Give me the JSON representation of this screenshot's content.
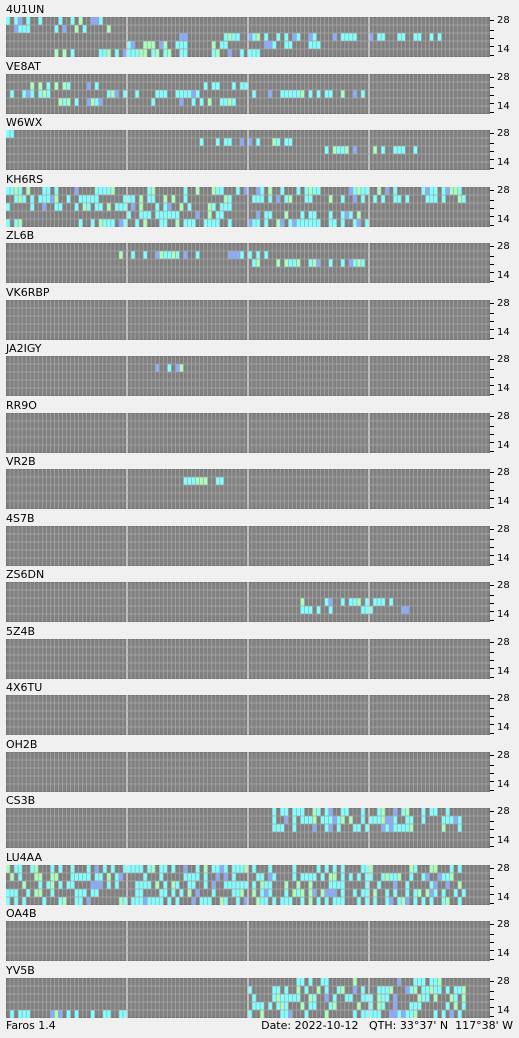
{
  "stations": [
    {
      "name": "4U1UN",
      "heard": {
        "4": [
          0,
          1,
          2,
          3,
          4
        ],
        "3": [
          0,
          2,
          3,
          4
        ],
        "2": [
          7,
          9,
          10,
          11,
          12,
          13,
          14,
          15,
          16,
          17
        ],
        "1": [
          4,
          5,
          6,
          7,
          8,
          9,
          10,
          11,
          12
        ],
        "0": [
          2,
          3,
          4,
          5,
          6,
          7,
          8,
          9,
          10
        ]
      }
    },
    {
      "name": "VE8AT",
      "heard": {
        "3": [
          1,
          2,
          3,
          8,
          9
        ],
        "2": [
          0,
          1,
          4,
          5,
          6,
          7,
          10,
          11,
          12,
          13,
          14
        ],
        "1": [
          2,
          3,
          6,
          7,
          8,
          9
        ],
        "0": []
      }
    },
    {
      "name": "W6WX",
      "heard": {
        "4": [
          0
        ],
        "3": [
          8,
          9,
          10,
          11
        ],
        "2": [
          13,
          14,
          15,
          16
        ],
        "1": [],
        "0": []
      }
    },
    {
      "name": "KH6RS",
      "heard": {
        "4": [
          0,
          1,
          2,
          3,
          4,
          5,
          6,
          7,
          8,
          9,
          10,
          11,
          12,
          13,
          14,
          15,
          16,
          17,
          18
        ],
        "3": [
          0,
          1,
          2,
          3,
          4,
          5,
          6,
          7,
          8,
          9,
          10,
          11,
          12,
          13,
          14,
          15,
          16,
          17,
          18
        ],
        "2": [
          0,
          1,
          2,
          3,
          4,
          5,
          6,
          7,
          8,
          9,
          10
        ],
        "1": [
          5,
          6,
          7,
          8,
          9,
          10,
          11,
          12,
          13,
          14
        ],
        "0": [
          0,
          3,
          4,
          5,
          6,
          7,
          8,
          9,
          10,
          11,
          12,
          13,
          14
        ]
      }
    },
    {
      "name": "ZL6B",
      "heard": {
        "4": [],
        "3": [
          4,
          5,
          6,
          7,
          8,
          9,
          10
        ],
        "2": [
          10,
          11,
          12,
          13,
          14
        ],
        "1": [],
        "0": []
      }
    },
    {
      "name": "VK6RBP",
      "heard": {
        "4": [],
        "3": [],
        "2": [],
        "1": [],
        "0": []
      }
    },
    {
      "name": "JA2IGY",
      "heard": {
        "4": [],
        "3": [
          6,
          7
        ],
        "2": [],
        "1": [],
        "0": []
      }
    },
    {
      "name": "RR9O",
      "heard": {
        "4": [],
        "3": [],
        "2": [],
        "1": [],
        "0": []
      }
    },
    {
      "name": "VR2B",
      "heard": {
        "4": [],
        "3": [
          7,
          8
        ],
        "2": [],
        "1": [],
        "0": []
      }
    },
    {
      "name": "4S7B",
      "heard": {
        "4": [],
        "3": [],
        "2": [],
        "1": [],
        "0": []
      }
    },
    {
      "name": "ZS6DN",
      "heard": {
        "4": [],
        "3": [],
        "2": [
          12,
          13,
          14,
          15
        ],
        "1": [
          12,
          13,
          14,
          15,
          16
        ],
        "0": []
      }
    },
    {
      "name": "5Z4B",
      "heard": {
        "4": [],
        "3": [],
        "2": [],
        "1": [],
        "0": []
      }
    },
    {
      "name": "4X6TU",
      "heard": {
        "4": [],
        "3": [],
        "2": [],
        "1": [],
        "0": []
      }
    },
    {
      "name": "OH2B",
      "heard": {
        "4": [],
        "3": [],
        "2": [],
        "1": [],
        "0": []
      }
    },
    {
      "name": "CS3B",
      "heard": {
        "4": [
          11,
          12,
          13,
          14,
          15,
          16,
          17,
          18
        ],
        "3": [
          11,
          12,
          13,
          14,
          15,
          16,
          17,
          18
        ],
        "2": [
          11,
          12,
          13,
          14,
          15,
          16,
          17,
          18
        ],
        "1": [],
        "0": []
      }
    },
    {
      "name": "LU4AA",
      "heard": {
        "4": [
          0,
          1,
          2,
          3,
          4,
          5,
          6,
          7,
          8,
          9,
          10,
          11,
          12,
          13,
          14,
          15,
          16,
          17,
          18
        ],
        "3": [
          0,
          1,
          2,
          3,
          4,
          5,
          6,
          7,
          8,
          9,
          10,
          11,
          12,
          13,
          14,
          15,
          16,
          17,
          18
        ],
        "2": [
          0,
          1,
          2,
          3,
          4,
          5,
          6,
          7,
          8,
          9,
          10,
          11,
          12,
          13,
          14,
          15,
          16,
          17,
          18
        ],
        "1": [
          0,
          1,
          2,
          3,
          4,
          5,
          6,
          7,
          8,
          9,
          10,
          11,
          12,
          13,
          14,
          15,
          16,
          17,
          18
        ],
        "0": [
          0,
          1,
          2,
          3,
          4,
          5,
          6,
          7,
          8,
          9,
          10,
          11,
          12,
          13,
          14,
          15,
          16,
          17,
          18
        ]
      }
    },
    {
      "name": "OA4B",
      "heard": {
        "4": [],
        "3": [],
        "2": [],
        "1": [],
        "0": []
      }
    },
    {
      "name": "YV5B",
      "heard": {
        "4": [
          12,
          13,
          14,
          15,
          16,
          17
        ],
        "3": [
          10,
          11,
          12,
          13,
          14,
          15,
          16,
          17,
          18
        ],
        "2": [
          10,
          11,
          12,
          13,
          14,
          15,
          16,
          17,
          18
        ],
        "1": [
          10,
          11,
          12,
          13,
          14,
          15,
          16,
          17,
          18
        ],
        "0": [
          0,
          1,
          2,
          3,
          4,
          10,
          11,
          12,
          13,
          14,
          15,
          16,
          17,
          18
        ]
      }
    }
  ],
  "axis": {
    "top": "28",
    "bottom": "14"
  },
  "footer": {
    "app": "Faros 1.4",
    "date": "Date: 2022-10-12",
    "qth": "QTH: 33°37' N  117°38' W"
  },
  "colors": {
    "empty": "#808080",
    "gridline": "#a8a8a8",
    "cyan": "#7fffff",
    "green": "#a8ffb8",
    "blue": "#88aaff",
    "band_heard": "#7fffff"
  }
}
